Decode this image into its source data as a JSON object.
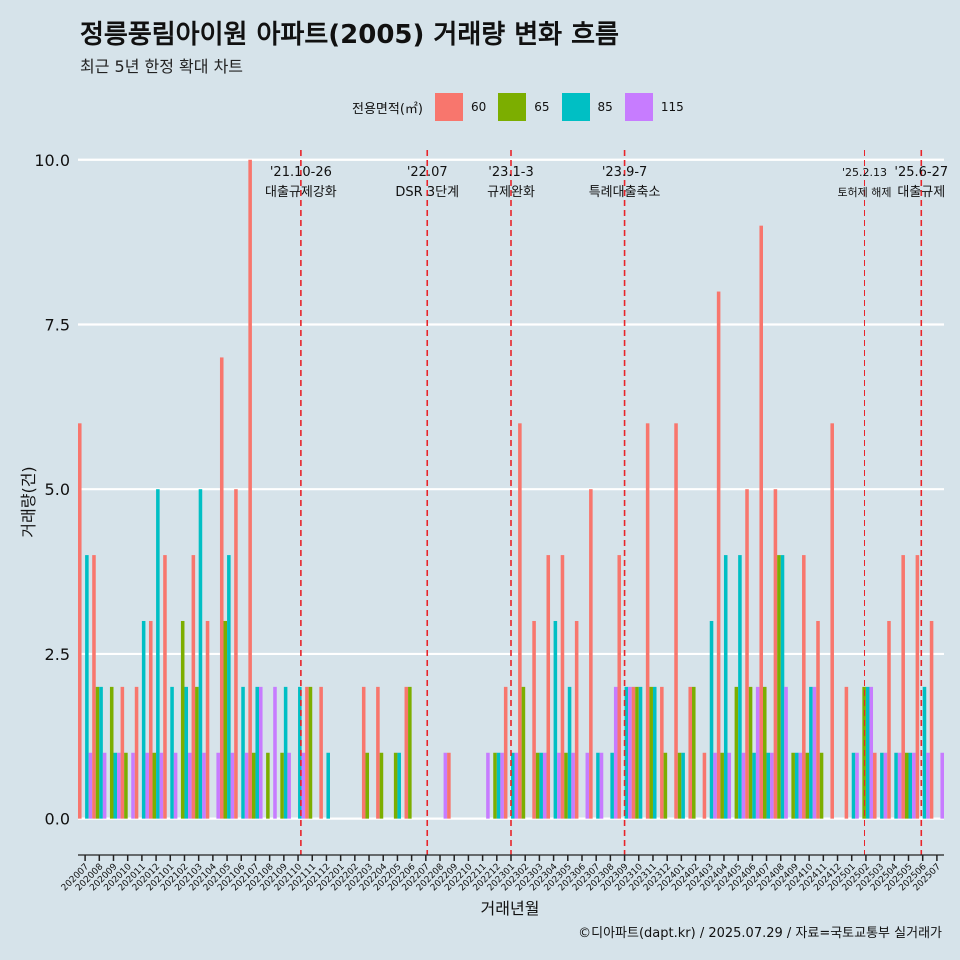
{
  "title": "정릉풍림아이원 아파트(2005) 거래량 변화 흐름",
  "subtitle": "최근 5년 한정 확대 차트",
  "caption": "©디아파트(dapt.kr) / 2025.07.29 / 자료=국토교통부 실거래가",
  "colors": {
    "60": "#f8766d",
    "65": "#7cae00",
    "85": "#00bfc4",
    "115": "#c77cff",
    "vline": "#e8242a",
    "grid": "#ffffff",
    "bg": "#d6e3ea"
  },
  "chart_data": {
    "type": "bar",
    "title": "정릉풍림아이원 아파트(2005) 거래량 변화 흐름",
    "subtitle": "최근 5년 한정 확대 차트",
    "xlabel": "거래년월",
    "ylabel": "거래량(건)",
    "ylim": [
      -0.4,
      10.3
    ],
    "yticks": [
      "0.0",
      "2.5",
      "5.0",
      "7.5",
      "10.0"
    ],
    "ytick_values": [
      0,
      2.5,
      5,
      7.5,
      10
    ],
    "legend_title": "전용면적(㎡)",
    "legend_position": "top",
    "categories": [
      "202007",
      "202008",
      "202009",
      "202010",
      "202011",
      "202012",
      "202101",
      "202102",
      "202103",
      "202104",
      "202105",
      "202106",
      "202107",
      "202108",
      "202109",
      "202110",
      "202111",
      "202112",
      "202201",
      "202202",
      "202203",
      "202204",
      "202205",
      "202206",
      "202207",
      "202208",
      "202209",
      "202210",
      "202211",
      "202212",
      "202301",
      "202302",
      "202303",
      "202304",
      "202305",
      "202306",
      "202307",
      "202308",
      "202309",
      "202310",
      "202311",
      "202312",
      "202401",
      "202402",
      "202403",
      "202404",
      "202405",
      "202406",
      "202407",
      "202408",
      "202409",
      "202410",
      "202411",
      "202412",
      "202501",
      "202502",
      "202503",
      "202504",
      "202505",
      "202506",
      "202507"
    ],
    "series": [
      {
        "name": "60",
        "values": [
          6,
          4,
          0,
          2,
          2,
          3,
          4,
          0,
          4,
          3,
          7,
          5,
          10,
          0,
          0,
          0,
          2,
          2,
          0,
          0,
          2,
          2,
          0,
          2,
          0,
          0,
          1,
          0,
          0,
          0,
          2,
          6,
          3,
          4,
          4,
          3,
          5,
          0,
          4,
          2,
          6,
          2,
          6,
          2,
          1,
          8,
          0,
          5,
          9,
          5,
          0,
          4,
          3,
          6,
          2,
          0,
          1,
          3,
          4,
          4,
          3
        ]
      },
      {
        "name": "65",
        "values": [
          0,
          2,
          2,
          1,
          0,
          1,
          0,
          3,
          2,
          0,
          3,
          0,
          1,
          1,
          1,
          0,
          2,
          0,
          0,
          0,
          1,
          1,
          1,
          2,
          0,
          0,
          0,
          0,
          0,
          1,
          0,
          2,
          1,
          0,
          1,
          0,
          0,
          0,
          0,
          2,
          2,
          1,
          1,
          2,
          0,
          1,
          2,
          2,
          2,
          4,
          1,
          1,
          1,
          0,
          0,
          2,
          0,
          0,
          1,
          0,
          0
        ]
      },
      {
        "name": "85",
        "values": [
          4,
          2,
          1,
          0,
          3,
          5,
          2,
          2,
          5,
          0,
          4,
          2,
          2,
          0,
          2,
          2,
          0,
          1,
          0,
          0,
          0,
          0,
          1,
          0,
          0,
          0,
          0,
          0,
          0,
          1,
          1,
          0,
          1,
          3,
          2,
          0,
          1,
          1,
          2,
          2,
          2,
          0,
          1,
          0,
          3,
          4,
          4,
          1,
          1,
          4,
          1,
          2,
          0,
          0,
          1,
          2,
          1,
          1,
          1,
          2,
          0
        ]
      },
      {
        "name": "115",
        "values": [
          1,
          1,
          1,
          1,
          1,
          1,
          1,
          1,
          1,
          1,
          1,
          1,
          2,
          2,
          1,
          1,
          0,
          0,
          0,
          0,
          0,
          0,
          0,
          0,
          0,
          1,
          0,
          0,
          1,
          1,
          1,
          0,
          1,
          1,
          1,
          1,
          1,
          2,
          2,
          0,
          0,
          0,
          0,
          0,
          1,
          1,
          1,
          2,
          1,
          2,
          1,
          2,
          0,
          0,
          1,
          2,
          1,
          1,
          1,
          1,
          1
        ]
      }
    ],
    "events": [
      {
        "index": 15.7,
        "date": "'21.10-26",
        "label": "대출규제강화",
        "style": "dashed"
      },
      {
        "index": 24.6,
        "date": "'22.07",
        "label": "DSR 3단계",
        "style": "dashed"
      },
      {
        "index": 30.5,
        "date": "'23.1-3",
        "label": "규제완화",
        "style": "dashed"
      },
      {
        "index": 38.5,
        "date": "'23.9-7",
        "label": "특례대출축소",
        "style": "dashed"
      },
      {
        "index": 55.4,
        "date": "'25.2.13",
        "label": "토허제 해제",
        "style": "thin"
      },
      {
        "index": 59.4,
        "date": "'25.6-27",
        "label": "대출규제",
        "style": "dashed"
      }
    ]
  }
}
